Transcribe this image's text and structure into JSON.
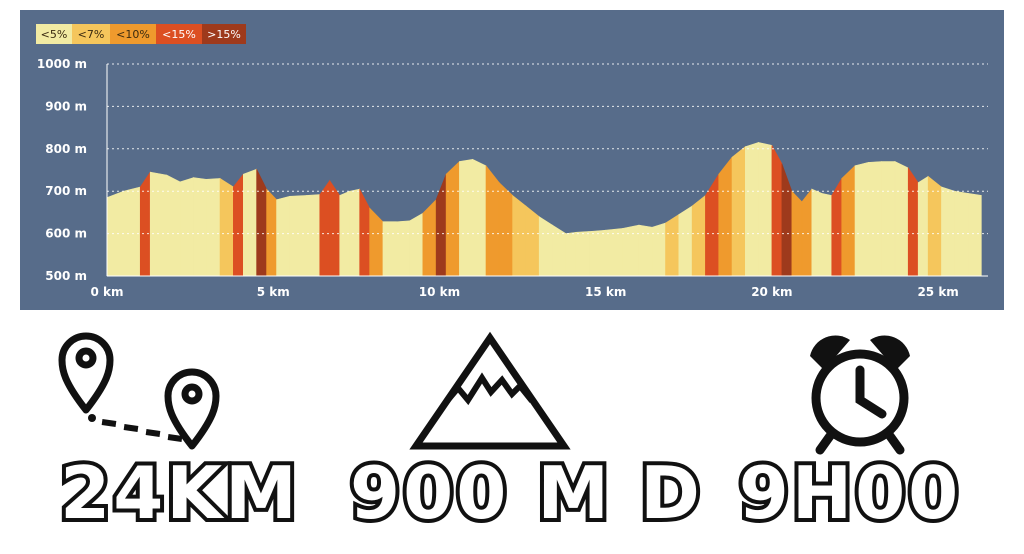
{
  "colors": {
    "background": "#576c8a",
    "grid": "#ffffff",
    "lt5": "#f2eba3",
    "lt7": "#f5c65c",
    "lt10": "#ef9a2d",
    "lt15": "#dc4f22",
    "gt15": "#9e3a1c"
  },
  "chart_data": {
    "type": "area",
    "title": "",
    "xlabel": "",
    "ylabel": "",
    "xlim": [
      0,
      26.5
    ],
    "ylim": [
      500,
      1000
    ],
    "grid": true,
    "legend_placement": "top-left",
    "x_ticks": [
      "0 km",
      "5 km",
      "10 km",
      "15 km",
      "20 km",
      "25 km"
    ],
    "y_ticks": [
      "1000 m",
      "900 m",
      "800 m",
      "700 m",
      "600 m",
      "500 m"
    ],
    "legend": [
      "<5%",
      "<7%",
      "<10%",
      "<15%",
      ">15%"
    ],
    "series": [
      {
        "x": [
          0,
          0.5,
          1.0,
          1.3,
          1.8,
          2.2,
          2.6,
          3.0,
          3.4,
          3.8,
          4.1,
          4.5,
          4.8,
          5.1,
          5.5,
          6.0,
          6.4,
          6.7,
          7.0,
          7.3,
          7.6,
          7.9,
          8.3,
          8.7,
          9.1,
          9.5,
          9.9,
          10.2,
          10.6,
          11.0,
          11.4,
          11.8,
          12.2,
          12.6,
          13.0,
          13.4,
          13.8,
          14.1,
          14.5,
          15.0,
          15.5,
          16.0,
          16.4,
          16.8,
          17.2,
          17.6,
          18.0,
          18.4,
          18.8,
          19.2,
          19.6,
          20.0,
          20.3,
          20.6,
          20.9,
          21.2,
          21.5,
          21.8,
          22.1,
          22.5,
          22.9,
          23.3,
          23.7,
          24.1,
          24.4,
          24.7,
          25.1,
          25.5,
          25.9,
          26.3
        ],
        "y": [
          685,
          700,
          710,
          745,
          738,
          722,
          732,
          728,
          730,
          710,
          740,
          752,
          705,
          680,
          688,
          690,
          692,
          725,
          690,
          700,
          705,
          660,
          628,
          628,
          630,
          648,
          680,
          740,
          770,
          775,
          760,
          720,
          690,
          665,
          640,
          620,
          600,
          603,
          605,
          608,
          612,
          620,
          615,
          625,
          645,
          665,
          690,
          740,
          780,
          805,
          815,
          808,
          765,
          700,
          675,
          705,
          695,
          690,
          730,
          760,
          768,
          770,
          770,
          755,
          720,
          735,
          710,
          700,
          695,
          690
        ]
      }
    ]
  },
  "stats": {
    "distance": "24KM",
    "elevation": "900 M D",
    "duration": "9H00"
  }
}
